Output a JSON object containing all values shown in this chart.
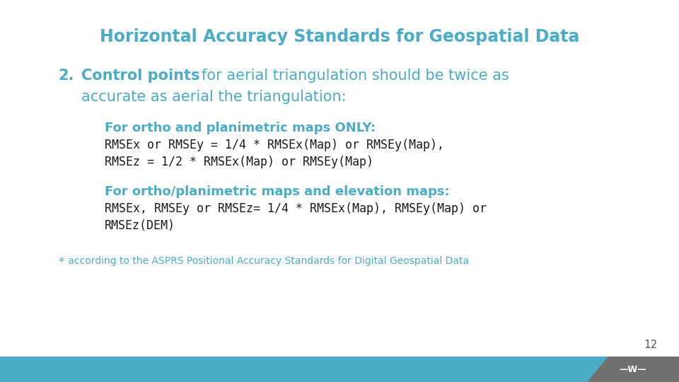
{
  "title": "Horizontal Accuracy Standards for Geospatial Data",
  "title_color": "#4BACC6",
  "background_color": "#FFFFFF",
  "point2_color": "#4BACC6",
  "section1_header": "For ortho and planimetric maps ONLY:",
  "section1_header_color": "#4BACC6",
  "section1_line1": "RMSEx or RMSEy = 1/4 * RMSEx(Map) or RMSEy(Map),",
  "section1_line2": "RMSEz = 1/2 * RMSEx(Map) or RMSEy(Map)",
  "section2_header": "For ortho/planimetric maps and elevation maps:",
  "section2_header_color": "#4BACC6",
  "section2_line1": "RMSEx, RMSEy or RMSEz= 1/4 * RMSEx(Map), RMSEy(Map) or",
  "section2_line2": "RMSEz(DEM)",
  "footnote_star": "*",
  "footnote_text": " according to the ASPRS Positional Accuracy Standards for Digital Geospatial Data",
  "footnote_color": "#4BACC6",
  "page_number": "12",
  "page_number_color": "#555555",
  "footer_bar_color": "#4BACC6",
  "footer_badge_color": "#707070",
  "body_text_color": "#1a1a1a",
  "mono_font": "DejaVu Sans Mono",
  "sans_font": "DejaVu Sans",
  "title_fontsize": 17,
  "header_fontsize": 13,
  "body_fontsize": 12,
  "point2_fontsize": 15,
  "footnote_fontsize": 10
}
